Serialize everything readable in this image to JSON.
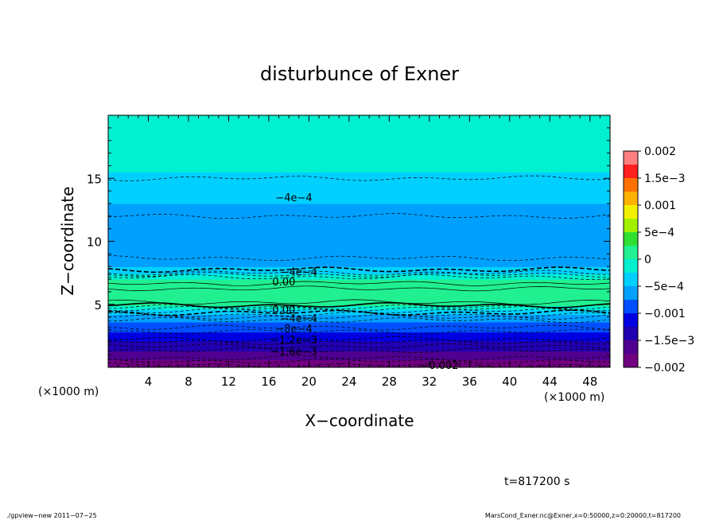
{
  "chart_data": {
    "type": "heatmap",
    "title": "disturbunce of Exner",
    "xlabel": "X−coordinate",
    "ylabel": "Z−coordinate",
    "x_unit_left": "(×1000 m)",
    "x_unit_right": "(×1000 m)",
    "xlim": [
      0,
      50
    ],
    "ylim": [
      0,
      20
    ],
    "x_ticks": [
      4,
      8,
      12,
      16,
      20,
      24,
      28,
      32,
      36,
      40,
      44,
      48
    ],
    "y_ticks": [
      5,
      10,
      15
    ],
    "colorbar": {
      "range": [
        -0.002,
        0.002
      ],
      "tick_values": [
        0.002,
        0.0015,
        0.001,
        0.0005,
        0,
        -0.0005,
        -0.001,
        -0.0015,
        -0.002
      ],
      "tick_labels": [
        "0.002",
        "1.5e−3",
        "0.001",
        "5e−4",
        "0",
        "−5e−4",
        "−0.001",
        "−1.5e−3",
        "−0.002"
      ],
      "colors": [
        "#ff8080",
        "#ff2020",
        "#ff7000",
        "#ffb000",
        "#f0f000",
        "#a0f000",
        "#30e030",
        "#20f090",
        "#00f0d0",
        "#00d0ff",
        "#00a0ff",
        "#0050ff",
        "#0000e0",
        "#2000b0",
        "#500090",
        "#700080"
      ]
    },
    "profile": {
      "z": [
        0,
        0.5,
        1,
        1.5,
        2,
        2.5,
        3,
        3.5,
        4,
        4.5,
        5,
        5.5,
        6,
        6.5,
        7,
        7.5,
        8,
        9,
        10,
        11,
        12,
        13,
        14,
        15,
        16,
        17,
        18,
        19,
        20
      ],
      "value": [
        -0.00195,
        -0.0018,
        -0.0016,
        -0.00145,
        -0.0013,
        -0.0011,
        -0.00095,
        -0.0008,
        -0.0006,
        -0.0003,
        5e-05,
        0.0002,
        0.00025,
        0.00015,
        0.0,
        -0.0003,
        -0.0005,
        -0.00065,
        -0.0007,
        -0.00065,
        -0.0006,
        -0.0005,
        -0.0004,
        -0.0003,
        -0.0002,
        -0.0001,
        -5e-05,
        -5e-05,
        -5e-05
      ]
    },
    "contour_labels": [
      {
        "text": "−4e−4",
        "x": 18.5,
        "z": 13.5
      },
      {
        "text": "−4e−4",
        "x": 19.0,
        "z": 7.6
      },
      {
        "text": "0.00",
        "x": 17.5,
        "z": 6.8
      },
      {
        "text": "0.00",
        "x": 17.5,
        "z": 4.6
      },
      {
        "text": "−4e−4",
        "x": 19.0,
        "z": 3.9
      },
      {
        "text": "−8e−4",
        "x": 18.5,
        "z": 3.1
      },
      {
        "text": "−1.2e−3",
        "x": 18.5,
        "z": 2.2
      },
      {
        "text": "−1.6e−3",
        "x": 18.5,
        "z": 1.3
      },
      {
        "text": "−0.002",
        "x": 33.0,
        "z": 0.2
      }
    ]
  },
  "footer": {
    "time": "t=817200 s",
    "program": "./gpview−new   2011−07−25",
    "source": "MarsCond_Exner.nc@Exner,x=0:50000,z=0:20000,t=817200"
  }
}
